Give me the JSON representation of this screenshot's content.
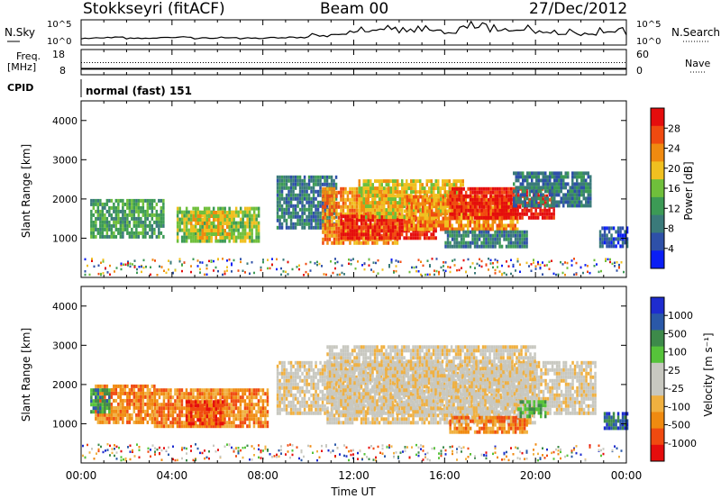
{
  "header": {
    "station": "Stokkseyri (fitACF)",
    "beam": "Beam 00",
    "date": "27/Dec/2012"
  },
  "nsky_panel": {
    "left_label": "N.Sky",
    "left_tick_top": "10^5",
    "left_tick_bottom": "10^0",
    "right_label": "N.Search",
    "right_tick_top": "10^5",
    "right_tick_bottom": "10^0"
  },
  "freq_panel": {
    "left_label_1": "Freq.",
    "left_label_2": "[MHz]",
    "left_tick_top": "18",
    "left_tick_bottom": "8",
    "right_label": "Nave",
    "right_tick_top": "60",
    "right_tick_bottom": "0"
  },
  "cpid": {
    "label": "CPID",
    "value": "normal (fast) 151"
  },
  "colors": {
    "power_scale": [
      "#0a1ef5",
      "#2e50a8",
      "#3a7a7a",
      "#3c9a55",
      "#6fbf3b",
      "#f0c020",
      "#f08a10",
      "#f04a10",
      "#e50d0d"
    ],
    "velocity_scale": [
      "#e50d0d",
      "#f04a10",
      "#f08a10",
      "#f0b040",
      "#c8c8c0",
      "#c8c8c0",
      "#56c33a",
      "#3d8a4a",
      "#2a58a8",
      "#1e2ccf"
    ]
  },
  "chart_data": [
    {
      "type": "line",
      "name": "n-sky-n-search",
      "x_range_hours": [
        0,
        24
      ],
      "y_range": [
        "10^0",
        "10^5"
      ],
      "series": [
        {
          "values": [
            1,
            1.2,
            1,
            1.1,
            1.3,
            1,
            1.2,
            1,
            1.1,
            1.2,
            1.5,
            2,
            2.5,
            3,
            2.4,
            2.8,
            2.2,
            3.5,
            2.6,
            2.9,
            2.3,
            2,
            1.8,
            2.4,
            1.9
          ]
        }
      ]
    },
    {
      "type": "line",
      "name": "freq-nave",
      "x_range_hours": [
        0,
        24
      ],
      "y_range": [
        8,
        18
      ],
      "series": [
        {
          "values": [
            10,
            10,
            10,
            10,
            10,
            10,
            10,
            10,
            10,
            10,
            10,
            10,
            10,
            10,
            10,
            10,
            10,
            10,
            10,
            10,
            10,
            10,
            10,
            10,
            10
          ]
        },
        {
          "values": [
            13,
            13,
            13,
            13,
            13,
            13,
            13,
            13,
            13,
            13,
            13,
            13,
            13,
            13,
            13,
            13,
            13,
            13,
            13,
            13,
            13,
            13,
            13,
            13,
            13
          ]
        }
      ]
    },
    {
      "type": "heatmap",
      "name": "power",
      "xlabel": "",
      "ylabel": "Slant Range [km]",
      "x_range_hours": [
        0,
        24
      ],
      "ylim": [
        0,
        4500
      ],
      "y_ticks": [
        "1000",
        "2000",
        "3000",
        "4000"
      ],
      "colorbar_label": "Power [dB]",
      "colorbar_ticks": [
        "4",
        "8",
        "12",
        "16",
        "20",
        "24",
        "28"
      ],
      "regions": [
        {
          "t0": 0.4,
          "t1": 3.6,
          "r0": 1000,
          "r1": 2000,
          "level": 3
        },
        {
          "t0": 4.2,
          "t1": 7.8,
          "r0": 900,
          "r1": 1800,
          "level": 4
        },
        {
          "t0": 4.8,
          "t1": 6.6,
          "r0": 1050,
          "r1": 1700,
          "level": 5
        },
        {
          "t0": 8.6,
          "t1": 11.2,
          "r0": 1300,
          "r1": 2600,
          "level": 2
        },
        {
          "t0": 10.6,
          "t1": 14.0,
          "r0": 900,
          "r1": 2300,
          "level": 6
        },
        {
          "t0": 11.4,
          "t1": 15.6,
          "r0": 1000,
          "r1": 1600,
          "level": 8
        },
        {
          "t0": 12.2,
          "t1": 16.8,
          "r0": 1500,
          "r1": 2500,
          "level": 5
        },
        {
          "t0": 14.2,
          "t1": 19.2,
          "r0": 1200,
          "r1": 2100,
          "level": 6
        },
        {
          "t0": 16.2,
          "t1": 20.8,
          "r0": 1500,
          "r1": 2300,
          "level": 8
        },
        {
          "t0": 19.0,
          "t1": 22.4,
          "r0": 1800,
          "r1": 2700,
          "level": 2
        },
        {
          "t0": 16.0,
          "t1": 19.6,
          "r0": 800,
          "r1": 1200,
          "level": 2
        },
        {
          "t0": 22.8,
          "t1": 24.0,
          "r0": 800,
          "r1": 1300,
          "level": 1
        }
      ]
    },
    {
      "type": "heatmap",
      "name": "velocity",
      "xlabel": "Time UT",
      "ylabel": "Slant Range [km]",
      "x_range_hours": [
        0,
        24
      ],
      "x_ticks": [
        "00:00",
        "04:00",
        "08:00",
        "12:00",
        "16:00",
        "20:00",
        "00:00"
      ],
      "ylim": [
        0,
        4500
      ],
      "y_ticks": [
        "1000",
        "2000",
        "3000",
        "4000"
      ],
      "colorbar_label": "Velocity [m s⁻¹]",
      "colorbar_ticks": [
        "1000",
        "500",
        "100",
        "25",
        "-25",
        "-100",
        "-500",
        "-1000"
      ],
      "regions": [
        {
          "t0": 0.6,
          "t1": 3.2,
          "r0": 1000,
          "r1": 2000,
          "level": 2
        },
        {
          "t0": 3.2,
          "t1": 8.2,
          "r0": 900,
          "r1": 1900,
          "level": 2
        },
        {
          "t0": 4.6,
          "t1": 6.2,
          "r0": 1000,
          "r1": 1600,
          "level": 1
        },
        {
          "t0": 8.6,
          "t1": 22.6,
          "r0": 1300,
          "r1": 2600,
          "level": 4
        },
        {
          "t0": 10.8,
          "t1": 20.0,
          "r0": 1000,
          "r1": 3000,
          "level": 4
        },
        {
          "t0": 16.2,
          "t1": 19.6,
          "r0": 800,
          "r1": 1200,
          "level": 2
        },
        {
          "t0": 19.2,
          "t1": 20.4,
          "r0": 1200,
          "r1": 1600,
          "level": 6
        },
        {
          "t0": 0.4,
          "t1": 1.2,
          "r0": 1300,
          "r1": 1900,
          "level": 7
        },
        {
          "t0": 23.0,
          "t1": 24.0,
          "r0": 900,
          "r1": 1300,
          "level": 8
        }
      ]
    }
  ]
}
